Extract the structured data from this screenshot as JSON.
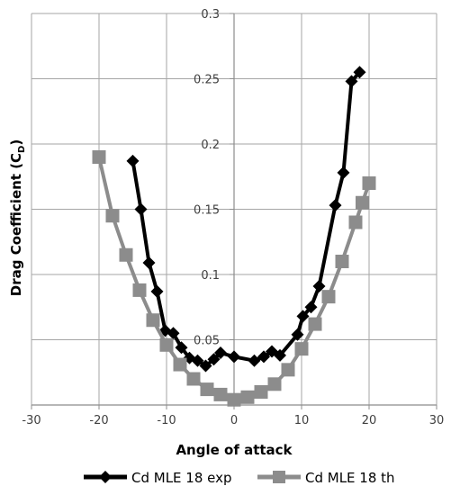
{
  "chart_data": {
    "type": "line",
    "title": "",
    "xlabel": "Angle of attack",
    "ylabel_main": "Drag Coefficient (C",
    "ylabel_sub": "D",
    "ylabel_close": ")",
    "xlim": [
      -30,
      30
    ],
    "ylim": [
      0,
      0.3
    ],
    "xticks": [
      -30,
      -20,
      -10,
      0,
      10,
      20,
      30
    ],
    "yticks": [
      0.05,
      0.1,
      0.15,
      0.2,
      0.25,
      0.3
    ],
    "xtick_labels": [
      "-30",
      "-20",
      "-10",
      "0",
      "10",
      "20",
      "30"
    ],
    "ytick_labels": [
      "0.05",
      "0.1",
      "0.15",
      "0.2",
      "0.25",
      "0.3"
    ],
    "grid": true,
    "legend_position": "bottom",
    "series": [
      {
        "name": "Cd MLE 18 exp",
        "color": "#000000",
        "marker": "diamond",
        "x": [
          -15,
          -13.8,
          -12.6,
          -11.4,
          -10.2,
          -9,
          -7.8,
          -6.6,
          -5.4,
          -4.2,
          -3,
          -2,
          0,
          3,
          4.4,
          5.6,
          6.8,
          9.4,
          10.2,
          11.4,
          12.6,
          15,
          16.2,
          17.4,
          18.6
        ],
        "y": [
          0.187,
          0.15,
          0.109,
          0.087,
          0.057,
          0.055,
          0.044,
          0.036,
          0.034,
          0.03,
          0.035,
          0.04,
          0.037,
          0.034,
          0.037,
          0.041,
          0.038,
          0.054,
          0.068,
          0.075,
          0.091,
          0.153,
          0.178,
          0.248,
          0.255
        ]
      },
      {
        "name": "Cd MLE 18 th",
        "color": "#8c8c8c",
        "marker": "square",
        "x": [
          -20,
          -18,
          -16,
          -14,
          -12,
          -10,
          -8,
          -6,
          -4,
          -2,
          0,
          2,
          4,
          6,
          8,
          10,
          12,
          14,
          16,
          18,
          19,
          20
        ],
        "y": [
          0.19,
          0.145,
          0.115,
          0.088,
          0.065,
          0.046,
          0.031,
          0.02,
          0.012,
          0.008,
          0.004,
          0.006,
          0.01,
          0.016,
          0.027,
          0.043,
          0.062,
          0.083,
          0.11,
          0.14,
          0.155,
          0.17
        ]
      }
    ]
  }
}
